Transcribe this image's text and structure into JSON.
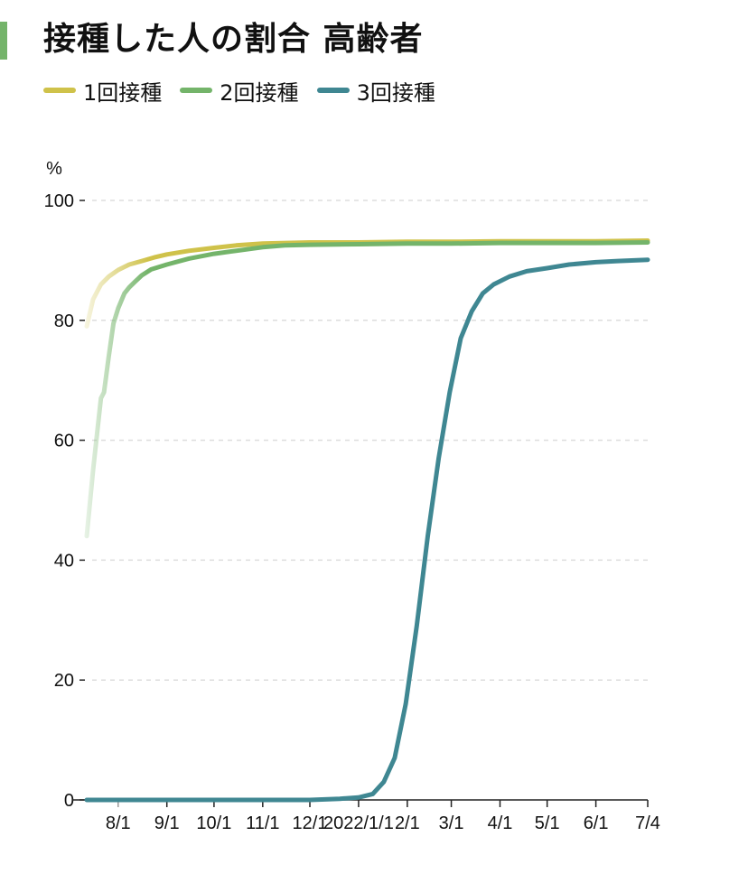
{
  "title": "接種した人の割合 高齢者",
  "colors": {
    "accent": "#74b46a",
    "dose1": "#cfc24a",
    "dose2": "#74b46a",
    "dose3": "#3f8792",
    "grid": "#dddddd",
    "axis": "#222222",
    "muted_tick": "#999999"
  },
  "legend": [
    {
      "label": "1回接種",
      "color_key": "dose1"
    },
    {
      "label": "2回接種",
      "color_key": "dose2"
    },
    {
      "label": "3回接種",
      "color_key": "dose3"
    }
  ],
  "chart_data": {
    "type": "line",
    "title": "接種した人の割合 高齢者",
    "ylabel": "%",
    "xlabel": "",
    "ylim": [
      0,
      100
    ],
    "xlim": [
      "2021-07-12",
      "2022-07-04"
    ],
    "yticks": [
      "0",
      "20",
      "40",
      "60",
      "80",
      "100"
    ],
    "xticks": [
      {
        "label": "8/1",
        "date": "2021-08-01",
        "muted": true
      },
      {
        "label": "9/1",
        "date": "2021-09-01"
      },
      {
        "label": "10/1",
        "date": "2021-10-01"
      },
      {
        "label": "11/1",
        "date": "2021-11-01"
      },
      {
        "label": "12/1",
        "date": "2021-12-01"
      },
      {
        "label": "2022/1/1",
        "date": "2022-01-01"
      },
      {
        "label": "2/1",
        "date": "2022-02-01"
      },
      {
        "label": "3/1",
        "date": "2022-03-01"
      },
      {
        "label": "4/1",
        "date": "2022-04-01"
      },
      {
        "label": "5/1",
        "date": "2022-05-01"
      },
      {
        "label": "6/1",
        "date": "2022-06-01"
      },
      {
        "label": "7/4",
        "date": "2022-07-04"
      }
    ],
    "series": [
      {
        "name": "1回接種",
        "color_key": "dose1",
        "fade_in": true,
        "points": [
          [
            "2021-07-12",
            79.0
          ],
          [
            "2021-07-16",
            83.5
          ],
          [
            "2021-07-21",
            86.0
          ],
          [
            "2021-07-26",
            87.3
          ],
          [
            "2021-08-01",
            88.4
          ],
          [
            "2021-08-08",
            89.3
          ],
          [
            "2021-08-16",
            89.9
          ],
          [
            "2021-08-24",
            90.5
          ],
          [
            "2021-09-01",
            91.0
          ],
          [
            "2021-09-15",
            91.6
          ],
          [
            "2021-10-01",
            92.1
          ],
          [
            "2021-10-15",
            92.5
          ],
          [
            "2021-11-01",
            92.8
          ],
          [
            "2021-12-01",
            93.0
          ],
          [
            "2022-01-01",
            93.0
          ],
          [
            "2022-02-01",
            93.1
          ],
          [
            "2022-03-01",
            93.1
          ],
          [
            "2022-04-01",
            93.2
          ],
          [
            "2022-05-01",
            93.2
          ],
          [
            "2022-06-01",
            93.2
          ],
          [
            "2022-07-04",
            93.3
          ]
        ]
      },
      {
        "name": "2回接種",
        "color_key": "dose2",
        "fade_in": true,
        "points": [
          [
            "2021-07-12",
            44.0
          ],
          [
            "2021-07-16",
            55.0
          ],
          [
            "2021-07-21",
            67.0
          ],
          [
            "2021-07-23",
            68.0
          ],
          [
            "2021-07-26",
            74.0
          ],
          [
            "2021-07-29",
            79.5
          ],
          [
            "2021-08-01",
            82.0
          ],
          [
            "2021-08-05",
            84.5
          ],
          [
            "2021-08-08",
            85.5
          ],
          [
            "2021-08-12",
            86.5
          ],
          [
            "2021-08-16",
            87.5
          ],
          [
            "2021-08-22",
            88.5
          ],
          [
            "2021-09-01",
            89.3
          ],
          [
            "2021-09-15",
            90.3
          ],
          [
            "2021-10-01",
            91.1
          ],
          [
            "2021-10-15",
            91.6
          ],
          [
            "2021-11-01",
            92.2
          ],
          [
            "2021-11-15",
            92.5
          ],
          [
            "2021-12-01",
            92.6
          ],
          [
            "2022-01-01",
            92.7
          ],
          [
            "2022-02-01",
            92.8
          ],
          [
            "2022-03-01",
            92.8
          ],
          [
            "2022-04-01",
            92.9
          ],
          [
            "2022-05-01",
            92.9
          ],
          [
            "2022-06-01",
            92.9
          ],
          [
            "2022-07-04",
            93.0
          ]
        ]
      },
      {
        "name": "3回接種",
        "color_key": "dose3",
        "fade_in": false,
        "points": [
          [
            "2021-07-12",
            0.0
          ],
          [
            "2021-12-01",
            0.0
          ],
          [
            "2021-12-20",
            0.2
          ],
          [
            "2022-01-01",
            0.4
          ],
          [
            "2022-01-10",
            1.0
          ],
          [
            "2022-01-17",
            3.0
          ],
          [
            "2022-01-24",
            7.0
          ],
          [
            "2022-01-31",
            16.0
          ],
          [
            "2022-02-07",
            29.0
          ],
          [
            "2022-02-14",
            44.0
          ],
          [
            "2022-02-21",
            57.0
          ],
          [
            "2022-02-28",
            68.0
          ],
          [
            "2022-03-07",
            77.0
          ],
          [
            "2022-03-14",
            81.5
          ],
          [
            "2022-03-21",
            84.5
          ],
          [
            "2022-03-28",
            86.0
          ],
          [
            "2022-04-07",
            87.3
          ],
          [
            "2022-04-18",
            88.2
          ],
          [
            "2022-05-01",
            88.7
          ],
          [
            "2022-05-15",
            89.3
          ],
          [
            "2022-06-01",
            89.7
          ],
          [
            "2022-06-15",
            89.9
          ],
          [
            "2022-07-04",
            90.1
          ]
        ]
      }
    ]
  }
}
